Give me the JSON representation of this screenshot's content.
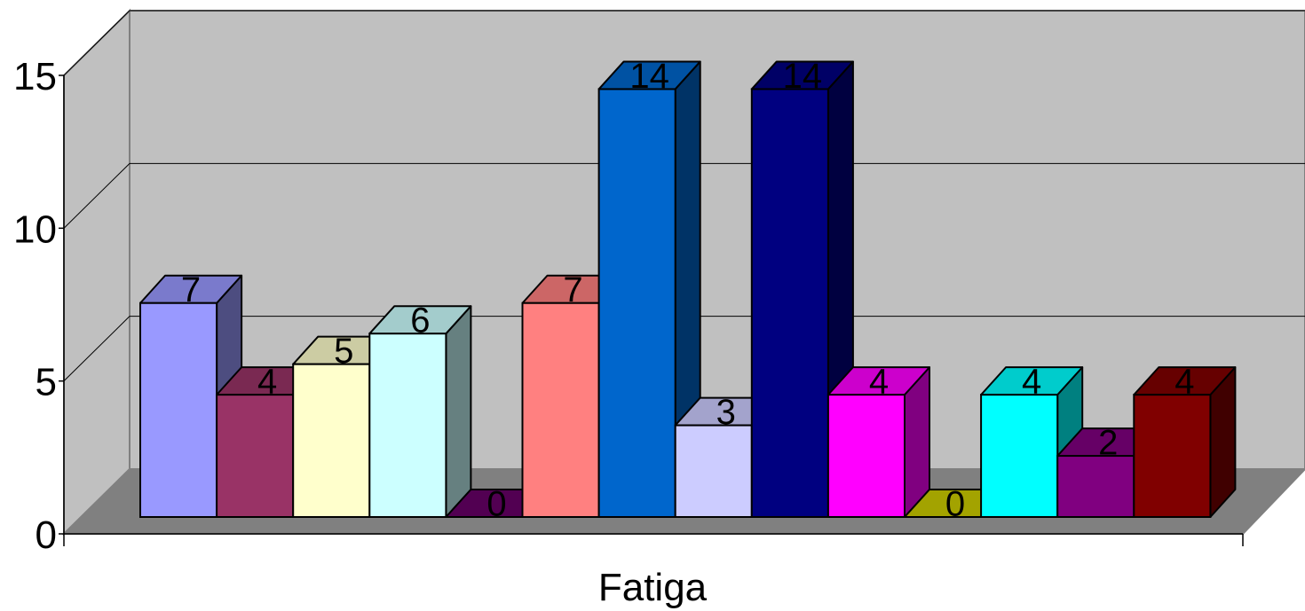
{
  "chart_data": {
    "type": "bar",
    "variant": "3d-clustered",
    "categories": [
      "Fatiga"
    ],
    "series": [
      {
        "values": [
          7
        ],
        "color": "#9999FF"
      },
      {
        "values": [
          4
        ],
        "color": "#993366"
      },
      {
        "values": [
          5
        ],
        "color": "#FFFFCC"
      },
      {
        "values": [
          6
        ],
        "color": "#CCFFFF"
      },
      {
        "values": [
          0
        ],
        "color": "#660066"
      },
      {
        "values": [
          7
        ],
        "color": "#FF8080"
      },
      {
        "values": [
          14
        ],
        "color": "#0066CC"
      },
      {
        "values": [
          3
        ],
        "color": "#CCCCFF"
      },
      {
        "values": [
          14
        ],
        "color": "#000080"
      },
      {
        "values": [
          4
        ],
        "color": "#FF00FF"
      },
      {
        "values": [
          0
        ],
        "color": "#CCCC00"
      },
      {
        "values": [
          4
        ],
        "color": "#00FFFF"
      },
      {
        "values": [
          2
        ],
        "color": "#800080"
      },
      {
        "values": [
          4
        ],
        "color": "#800000"
      }
    ],
    "data_labels": [
      "7",
      "4",
      "5",
      "6",
      "0",
      "7",
      "14",
      "3",
      "14",
      "4",
      "0",
      "4",
      "2",
      "4"
    ],
    "yticks": [
      "0",
      "5",
      "10",
      "15"
    ],
    "ylim": [
      0,
      15
    ],
    "grid": true,
    "legend": "none",
    "wall_color": "#C0C0C0",
    "floor_color": "#808080"
  }
}
